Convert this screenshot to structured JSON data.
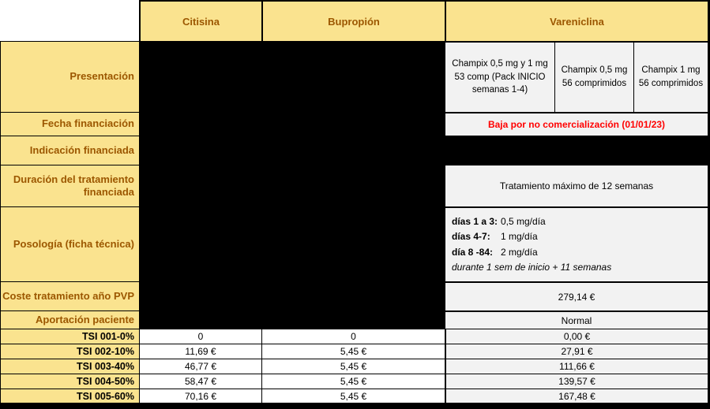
{
  "colors": {
    "accent_bg": "#FAE38F",
    "accent_text": "#9C5700",
    "redacted": "#000000",
    "gray_cell": "#F2F2F2",
    "alert_text": "#FF0000"
  },
  "header": {
    "citisina": "Citisina",
    "bupropion": "Bupropión",
    "vareniclina": "Vareniclina"
  },
  "rows": {
    "presentacion": {
      "label": "Presentación",
      "vareniclina": [
        "Champix 0,5 mg y 1 mg 53 comp (Pack INICIO semanas 1-4)",
        "Champix 0,5 mg 56 comprimidos",
        "Champix 1 mg 56 comprimidos"
      ]
    },
    "fecha": {
      "label": "Fecha financiación",
      "vareniclina": "Baja por no comercialización  (01/01/23)"
    },
    "indicacion": {
      "label": "Indicación financiada"
    },
    "duracion": {
      "label": "Duración del tratamiento financiada",
      "vareniclina": "Tratamiento máximo de 12 semanas"
    },
    "posologia": {
      "label": "Posología (ficha técnica)",
      "lines": [
        [
          "días 1 a 3:",
          "0,5 mg/día"
        ],
        [
          "días 4-7:",
          "1 mg/día"
        ],
        [
          "día 8 -84:",
          "2 mg/día"
        ]
      ],
      "note": "durante 1 sem de inicio + 11 semanas"
    },
    "coste": {
      "label": "Coste tratamiento año PVP",
      "vareniclina": "279,14 €"
    },
    "aportacion": {
      "label": "Aportación paciente",
      "vareniclina": "Normal"
    },
    "tsi": [
      {
        "label": "TSI 001-0%",
        "citisina": "0",
        "bupropion": "0",
        "vareniclina": "0,00 €"
      },
      {
        "label": "TSI 002-10%",
        "citisina": "11,69 €",
        "bupropion": "5,45 €",
        "vareniclina": "27,91 €"
      },
      {
        "label": "TSI 003-40%",
        "citisina": "46,77 €",
        "bupropion": "5,45 €",
        "vareniclina": "111,66 €"
      },
      {
        "label": "TSI 004-50%",
        "citisina": "58,47 €",
        "bupropion": "5,45 €",
        "vareniclina": "139,57 €"
      },
      {
        "label": "TSI 005-60%",
        "citisina": "70,16 €",
        "bupropion": "5,45 €",
        "vareniclina": "167,48 €"
      }
    ]
  }
}
